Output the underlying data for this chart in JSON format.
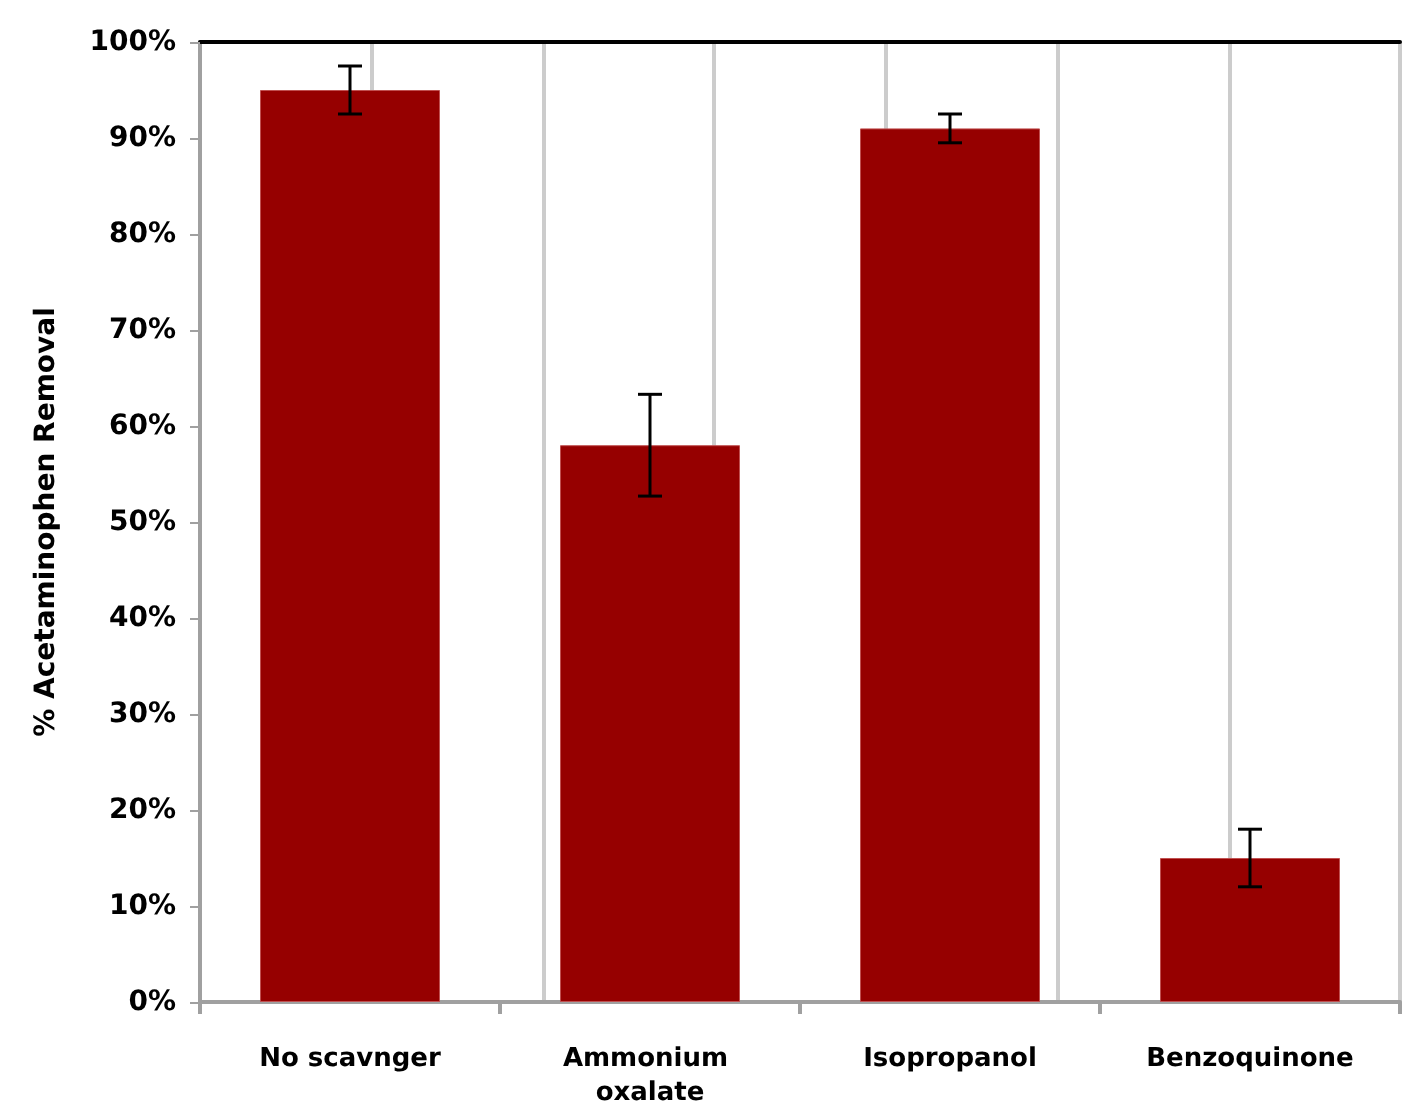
{
  "chart_data": {
    "type": "bar",
    "ylabel": "% Acetaminophen Removal",
    "categories": [
      "No scavnger",
      "Ammonium oxalate",
      "Isopropanol",
      "Benzoquinone"
    ],
    "values": [
      95,
      58,
      91,
      15
    ],
    "errors": [
      2.5,
      5.3,
      1.5,
      3
    ],
    "color": "#960000",
    "ylim": [
      0,
      100
    ],
    "yticks": [
      {
        "value": 0,
        "label": "0%"
      },
      {
        "value": 10,
        "label": "10%"
      },
      {
        "value": 20,
        "label": "20%"
      },
      {
        "value": 30,
        "label": "30%"
      },
      {
        "value": 40,
        "label": "40%"
      },
      {
        "value": 50,
        "label": "50%"
      },
      {
        "value": 60,
        "label": "60%"
      },
      {
        "value": 70,
        "label": "70%"
      },
      {
        "value": 80,
        "label": "80%"
      },
      {
        "value": 90,
        "label": "90%"
      },
      {
        "value": 100,
        "label": "100%"
      }
    ],
    "grid": "x"
  }
}
